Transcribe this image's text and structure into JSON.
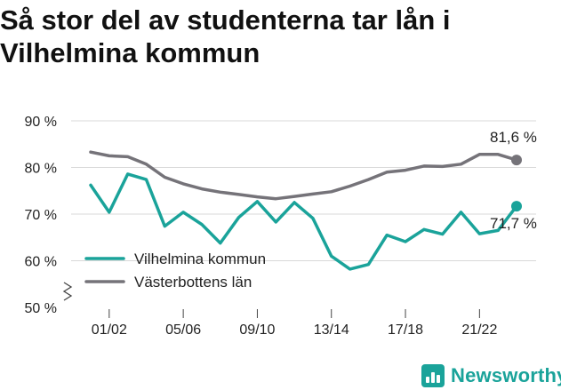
{
  "title": "Så stor del av studenterna tar lån i Vilhelmina kommun",
  "brand": {
    "name": "Newsworthy",
    "icon": "newsworthy-logo-icon",
    "color": "#1aa39a"
  },
  "chart_data": {
    "type": "line",
    "title": "Så stor del av studenterna tar lån i Vilhelmina kommun",
    "xlabel": "",
    "ylabel": "",
    "x": [
      "00/01",
      "01/02",
      "02/03",
      "03/04",
      "04/05",
      "05/06",
      "06/07",
      "07/08",
      "08/09",
      "09/10",
      "10/11",
      "11/12",
      "12/13",
      "13/14",
      "14/15",
      "15/16",
      "16/17",
      "17/18",
      "18/19",
      "19/20",
      "20/21",
      "21/22",
      "22/23",
      "23/24"
    ],
    "x_tick_labels": [
      "01/02",
      "05/06",
      "09/10",
      "13/14",
      "17/18",
      "21/22"
    ],
    "y_tick_labels": [
      "50 %",
      "60 %",
      "70 %",
      "80 %",
      "90 %"
    ],
    "y_ticks": [
      50,
      60,
      70,
      80,
      90
    ],
    "ylim": [
      50,
      90
    ],
    "y_axis_break": true,
    "grid": true,
    "legend_position": "bottom-left",
    "series": [
      {
        "name": "Vilhelmina kommun",
        "color": "#1aa39a",
        "values": [
          76.2,
          70.4,
          78.6,
          77.4,
          67.4,
          70.4,
          67.8,
          63.8,
          69.3,
          72.7,
          68.3,
          72.5,
          69.1,
          61.0,
          58.2,
          59.2,
          65.5,
          64.1,
          66.7,
          65.7,
          70.4,
          65.8,
          66.5,
          71.7
        ],
        "end_label": "71,7 %"
      },
      {
        "name": "Västerbottens län",
        "color": "#757379",
        "values": [
          83.3,
          82.5,
          82.3,
          80.7,
          77.9,
          76.5,
          75.4,
          74.7,
          74.2,
          73.7,
          73.3,
          73.8,
          74.3,
          74.8,
          76.0,
          77.4,
          79.0,
          79.4,
          80.3,
          80.2,
          80.7,
          82.8,
          82.8,
          81.6
        ],
        "end_label": "81,6 %"
      }
    ]
  }
}
